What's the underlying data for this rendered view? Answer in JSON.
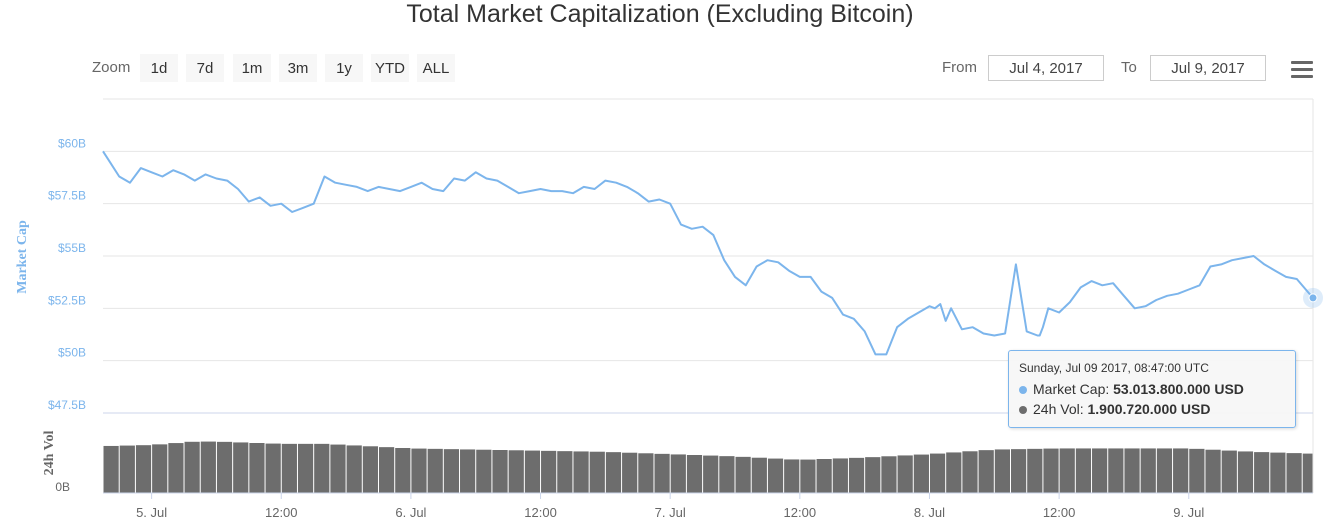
{
  "title": "Total Market Capitalization (Excluding Bitcoin)",
  "zoom": {
    "label": "Zoom",
    "buttons": [
      "1d",
      "7d",
      "1m",
      "3m",
      "1y",
      "YTD",
      "ALL"
    ]
  },
  "range": {
    "from_label": "From",
    "from_value": "Jul 4, 2017",
    "to_label": "To",
    "to_value": "Jul 9, 2017"
  },
  "menu_icon": "hamburger-menu-icon",
  "tooltip": {
    "header": "Sunday, Jul 09 2017, 08:47:00 UTC",
    "market_cap_label": "Market Cap:",
    "market_cap_value": "53.013.800.000 USD",
    "volume_label": "24h Vol:",
    "volume_value": "1.900.720.000 USD"
  },
  "colors": {
    "market_cap_line": "#7cb5ec",
    "volume_bars": "#6d6d6d",
    "axis_label": "#7cb5ec",
    "grid": "#e6e6e6"
  },
  "chart_data": {
    "type": "line",
    "title": "Total Market Capitalization (Excluding Bitcoin)",
    "x_tick_labels": [
      "5. Jul",
      "12:00",
      "6. Jul",
      "12:00",
      "7. Jul",
      "12:00",
      "8. Jul",
      "12:00",
      "9. Jul"
    ],
    "x_tick_hours": [
      24,
      36,
      48,
      60,
      72,
      84,
      96,
      108,
      120
    ],
    "x_range_hours": [
      19.5,
      131.5
    ],
    "market_cap": {
      "ylabel": "Market Cap",
      "y_tick_labels": [
        "$47.5B",
        "$50B",
        "$52.5B",
        "$55B",
        "$57.5B",
        "$60B"
      ],
      "y_ticks": [
        47.5,
        50,
        52.5,
        55,
        57.5,
        60
      ],
      "ylim": [
        47.5,
        62.5
      ],
      "series": [
        {
          "name": "Market Cap",
          "x": [
            19.5,
            20,
            21,
            22,
            23,
            24,
            25,
            26,
            27,
            28,
            29,
            30,
            31,
            32,
            33,
            34,
            35,
            36,
            37,
            38,
            39,
            40,
            41,
            42,
            43,
            44,
            45,
            46,
            47,
            48,
            49,
            50,
            51,
            52,
            53,
            54,
            55,
            56,
            57,
            58,
            59,
            60,
            61,
            62,
            63,
            64,
            65,
            66,
            67,
            68,
            69,
            70,
            71,
            72,
            73,
            74,
            75,
            76,
            77,
            78,
            79,
            80,
            81,
            82,
            83,
            84,
            85,
            86,
            87,
            88,
            89,
            90,
            91,
            92,
            93,
            94,
            95,
            96,
            96.5,
            97,
            97.5,
            98,
            99,
            100,
            101,
            102,
            103,
            104,
            105,
            106,
            106.2,
            106.5,
            107,
            108,
            109,
            110,
            111,
            112,
            113,
            114,
            115,
            116,
            117,
            118,
            119,
            120,
            121,
            122,
            123,
            124,
            125,
            126,
            127,
            128,
            129,
            130,
            131,
            131.5
          ],
          "values": [
            60.0,
            59.6,
            58.8,
            58.5,
            59.2,
            59.0,
            58.8,
            59.1,
            58.9,
            58.6,
            58.9,
            58.7,
            58.6,
            58.2,
            57.6,
            57.8,
            57.4,
            57.5,
            57.1,
            57.3,
            57.5,
            58.8,
            58.5,
            58.4,
            58.3,
            58.1,
            58.3,
            58.2,
            58.1,
            58.3,
            58.5,
            58.2,
            58.1,
            58.7,
            58.6,
            59.0,
            58.7,
            58.6,
            58.3,
            58.0,
            58.1,
            58.2,
            58.1,
            58.1,
            58.0,
            58.3,
            58.2,
            58.6,
            58.5,
            58.3,
            58.0,
            57.6,
            57.7,
            57.5,
            56.5,
            56.3,
            56.4,
            56.0,
            54.8,
            54.0,
            53.6,
            54.5,
            54.8,
            54.7,
            54.3,
            54.0,
            54.0,
            53.3,
            53.0,
            52.2,
            52.0,
            51.4,
            50.3,
            50.3,
            51.6,
            52.0,
            52.3,
            52.6,
            52.5,
            52.7,
            51.9,
            52.5,
            51.5,
            51.6,
            51.3,
            51.2,
            51.3,
            54.6,
            51.4,
            51.2,
            51.2,
            51.6,
            52.5,
            52.3,
            52.8,
            53.5,
            53.8,
            53.6,
            53.7,
            53.1,
            52.5,
            52.6,
            52.9,
            53.1,
            53.2,
            53.4,
            53.6,
            54.5,
            54.6,
            54.8,
            54.9,
            55.0,
            54.6,
            54.3,
            54.0,
            53.9,
            53.3,
            53.0
          ]
        }
      ]
    },
    "volume": {
      "ylabel": "24h Vol",
      "y_tick_labels": [
        "0B"
      ],
      "ylim": [
        0,
        3.5
      ],
      "series": [
        {
          "name": "24h Vol",
          "x": [
            19.5,
            24,
            28,
            30,
            36,
            40,
            48,
            54,
            60,
            66,
            72,
            78,
            84,
            90,
            96,
            102,
            108,
            114,
            120,
            126,
            131.5
          ],
          "values": [
            2.05,
            2.1,
            2.25,
            2.25,
            2.15,
            2.15,
            1.95,
            1.9,
            1.85,
            1.8,
            1.7,
            1.6,
            1.45,
            1.55,
            1.7,
            1.9,
            1.95,
            1.95,
            1.95,
            1.8,
            1.72
          ]
        }
      ]
    }
  }
}
